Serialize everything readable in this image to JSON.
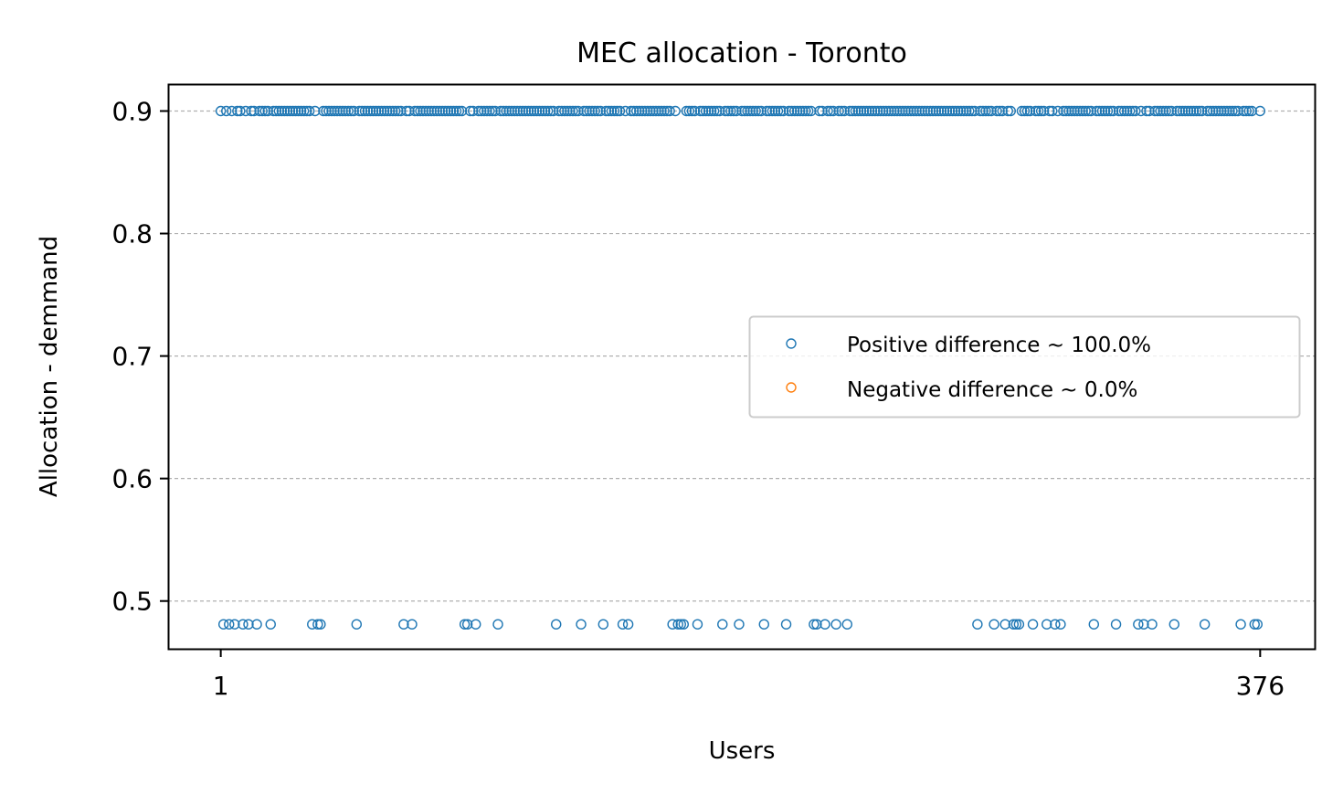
{
  "chart_data": {
    "type": "scatter",
    "title": "MEC allocation - Toronto",
    "xlabel": "Users",
    "ylabel": "Allocation - demmand",
    "xlim": [
      -18,
      396
    ],
    "ylim": [
      0.461,
      0.922
    ],
    "x_ticks": [
      1,
      376
    ],
    "y_ticks": [
      0.5,
      0.6,
      0.7,
      0.8,
      0.9
    ],
    "y_tick_labels": [
      "0.5",
      "0.6",
      "0.7",
      "0.8",
      "0.9"
    ],
    "grid": "y-axis, dashed",
    "legend_position": "center-right",
    "marker": "hollow circle",
    "series": [
      {
        "name": "Positive difference ~ 100.0%",
        "color": "#1f77b4",
        "points": [
          {
            "x": 2,
            "y": 0.481
          },
          {
            "x": 4,
            "y": 0.481
          },
          {
            "x": 6,
            "y": 0.481
          },
          {
            "x": 9,
            "y": 0.481
          },
          {
            "x": 11,
            "y": 0.481
          },
          {
            "x": 14,
            "y": 0.481
          },
          {
            "x": 19,
            "y": 0.481
          },
          {
            "x": 34,
            "y": 0.481
          },
          {
            "x": 36,
            "y": 0.481
          },
          {
            "x": 37,
            "y": 0.481
          },
          {
            "x": 50,
            "y": 0.481
          },
          {
            "x": 67,
            "y": 0.481
          },
          {
            "x": 70,
            "y": 0.481
          },
          {
            "x": 89,
            "y": 0.481
          },
          {
            "x": 90,
            "y": 0.481
          },
          {
            "x": 93,
            "y": 0.481
          },
          {
            "x": 101,
            "y": 0.481
          },
          {
            "x": 122,
            "y": 0.481
          },
          {
            "x": 131,
            "y": 0.481
          },
          {
            "x": 139,
            "y": 0.481
          },
          {
            "x": 146,
            "y": 0.481
          },
          {
            "x": 148,
            "y": 0.481
          },
          {
            "x": 164,
            "y": 0.481
          },
          {
            "x": 166,
            "y": 0.481
          },
          {
            "x": 167,
            "y": 0.481
          },
          {
            "x": 168,
            "y": 0.481
          },
          {
            "x": 173,
            "y": 0.481
          },
          {
            "x": 182,
            "y": 0.481
          },
          {
            "x": 188,
            "y": 0.481
          },
          {
            "x": 197,
            "y": 0.481
          },
          {
            "x": 205,
            "y": 0.481
          },
          {
            "x": 215,
            "y": 0.481
          },
          {
            "x": 216,
            "y": 0.481
          },
          {
            "x": 219,
            "y": 0.481
          },
          {
            "x": 223,
            "y": 0.481
          },
          {
            "x": 227,
            "y": 0.481
          },
          {
            "x": 274,
            "y": 0.481
          },
          {
            "x": 280,
            "y": 0.481
          },
          {
            "x": 284,
            "y": 0.481
          },
          {
            "x": 287,
            "y": 0.481
          },
          {
            "x": 288,
            "y": 0.481
          },
          {
            "x": 289,
            "y": 0.481
          },
          {
            "x": 294,
            "y": 0.481
          },
          {
            "x": 299,
            "y": 0.481
          },
          {
            "x": 302,
            "y": 0.481
          },
          {
            "x": 304,
            "y": 0.481
          },
          {
            "x": 316,
            "y": 0.481
          },
          {
            "x": 324,
            "y": 0.481
          },
          {
            "x": 332,
            "y": 0.481
          },
          {
            "x": 334,
            "y": 0.481
          },
          {
            "x": 337,
            "y": 0.481
          },
          {
            "x": 345,
            "y": 0.481
          },
          {
            "x": 356,
            "y": 0.481
          },
          {
            "x": 369,
            "y": 0.481
          },
          {
            "x": 374,
            "y": 0.481
          },
          {
            "x": 375,
            "y": 0.481
          }
        ],
        "other_users": {
          "y": 0.9,
          "note": "all remaining users from 1 to 376"
        }
      },
      {
        "name": "Negative difference ~ 0.0%",
        "color": "#ff7f0e",
        "points": []
      }
    ]
  }
}
